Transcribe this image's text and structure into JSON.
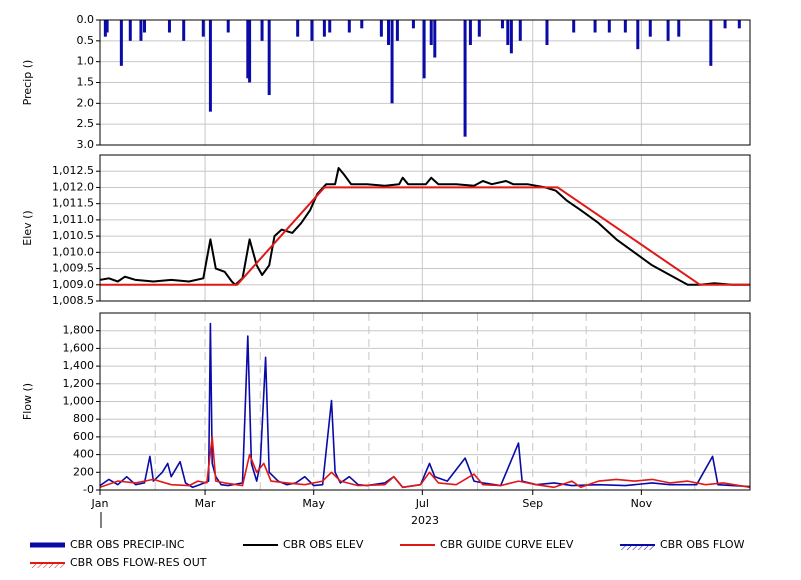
{
  "chart_data": [
    {
      "type": "bar",
      "ylabel": "Precip ()",
      "y_inverted": true,
      "grid": true,
      "xlim": [
        0,
        365
      ],
      "ylim": [
        0,
        3
      ],
      "yticks": [
        {
          "value": 0,
          "label": "0.0"
        },
        0.5,
        {
          "value": 1,
          "label": "1.0"
        },
        1.5,
        {
          "value": 2,
          "label": "2.0"
        },
        2.5,
        {
          "value": 3,
          "label": "3.0"
        }
      ],
      "series": [
        {
          "name": "CBR OBS PRECIP-INC",
          "color": "#0a0aa8",
          "x": [
            3,
            4,
            12,
            17,
            23,
            25,
            39,
            47,
            58,
            62,
            72,
            83,
            84,
            91,
            95,
            111,
            119,
            126,
            129,
            140,
            147,
            158,
            162,
            164,
            167,
            176,
            182,
            186,
            188,
            205,
            208,
            213,
            226,
            229,
            231,
            236,
            251,
            266,
            278,
            286,
            295,
            302,
            309,
            319,
            325,
            343,
            351,
            359
          ],
          "values": [
            0.4,
            0.3,
            1.1,
            0.5,
            0.5,
            0.3,
            0.3,
            0.5,
            0.4,
            2.2,
            0.3,
            1.4,
            1.5,
            0.5,
            1.8,
            0.4,
            0.5,
            0.4,
            0.3,
            0.3,
            0.2,
            0.4,
            0.6,
            2.0,
            0.5,
            0.2,
            1.4,
            0.6,
            0.9,
            2.8,
            0.6,
            0.4,
            0.2,
            0.6,
            0.8,
            0.5,
            0.6,
            0.3,
            0.3,
            0.3,
            0.3,
            0.7,
            0.4,
            0.5,
            0.4,
            1.1,
            0.2,
            0.2
          ]
        }
      ]
    },
    {
      "type": "line",
      "ylabel": "Elev ()",
      "grid": true,
      "xlim": [
        0,
        365
      ],
      "ylim": [
        1008.5,
        1013
      ],
      "yticks": [
        {
          "value": 1008.5,
          "label": "1,008.5"
        },
        {
          "value": 1009,
          "label": "1,009.0"
        },
        {
          "value": 1009.5,
          "label": "1,009.5"
        },
        {
          "value": 1010,
          "label": "1,010.0"
        },
        {
          "value": 1010.5,
          "label": "1,010.5"
        },
        {
          "value": 1011,
          "label": "1,011.0"
        },
        {
          "value": 1011.5,
          "label": "1,011.5"
        },
        {
          "value": 1012,
          "label": "1,012.0"
        },
        {
          "value": 1012.5,
          "label": "1,012.5"
        }
      ],
      "series": [
        {
          "name": "CBR OBS ELEV",
          "color": "#000000",
          "x": [
            0,
            5,
            10,
            14,
            20,
            30,
            40,
            50,
            58,
            62,
            65,
            70,
            74,
            76,
            80,
            84,
            88,
            91,
            95,
            98,
            102,
            108,
            113,
            118,
            122,
            127,
            132,
            134,
            137,
            141,
            150,
            160,
            168,
            170,
            173,
            183,
            186,
            190,
            200,
            210,
            215,
            220,
            228,
            232,
            240,
            250,
            256,
            262,
            270,
            280,
            290,
            300,
            310,
            320,
            330,
            337,
            345,
            355,
            365
          ],
          "values": [
            1009.15,
            1009.2,
            1009.1,
            1009.25,
            1009.15,
            1009.1,
            1009.15,
            1009.1,
            1009.2,
            1010.4,
            1009.5,
            1009.4,
            1009.1,
            1009.0,
            1009.2,
            1010.4,
            1009.6,
            1009.3,
            1009.6,
            1010.5,
            1010.7,
            1010.6,
            1010.9,
            1011.3,
            1011.8,
            1012.1,
            1012.1,
            1012.6,
            1012.4,
            1012.1,
            1012.1,
            1012.05,
            1012.1,
            1012.3,
            1012.1,
            1012.1,
            1012.3,
            1012.1,
            1012.1,
            1012.05,
            1012.2,
            1012.1,
            1012.2,
            1012.1,
            1012.1,
            1012.0,
            1011.9,
            1011.6,
            1011.3,
            1010.9,
            1010.4,
            1010.0,
            1009.6,
            1009.3,
            1009.0,
            1009.0,
            1009.05,
            1009.0,
            1009.0
          ]
        },
        {
          "name": "CBR GUIDE CURVE ELEV",
          "color": "#e01818",
          "x": [
            0,
            77,
            126,
            257,
            337,
            365
          ],
          "values": [
            1009,
            1009,
            1012,
            1012,
            1009,
            1009
          ]
        }
      ]
    },
    {
      "type": "line",
      "ylabel": "Flow ()",
      "grid": true,
      "grid_style": "dashed",
      "xlabel": "2023",
      "xlim": [
        0,
        365
      ],
      "xticks": [
        {
          "value": 0,
          "label": "Jan"
        },
        {
          "value": 59,
          "label": "Mar"
        },
        {
          "value": 120,
          "label": "May"
        },
        {
          "value": 181,
          "label": "Jul"
        },
        {
          "value": 243,
          "label": "Sep"
        },
        {
          "value": 304,
          "label": "Nov"
        }
      ],
      "xminorticks": [
        31,
        90,
        151,
        212,
        273,
        334
      ],
      "ylim": [
        0,
        2000
      ],
      "yticks": [
        {
          "value": 0,
          "label": "-0"
        },
        200,
        400,
        600,
        800,
        {
          "value": 1000,
          "label": "1,000"
        },
        {
          "value": 1200,
          "label": "1,200"
        },
        {
          "value": 1400,
          "label": "1,400"
        },
        {
          "value": 1600,
          "label": "1,600"
        },
        {
          "value": 1800,
          "label": "1,800"
        }
      ],
      "series": [
        {
          "name": "CBR OBS FLOW",
          "color": "#0a0aa8",
          "x": [
            0,
            5,
            10,
            15,
            20,
            25,
            28,
            30,
            35,
            38,
            40,
            45,
            48,
            52,
            56,
            61,
            62,
            63,
            65,
            68,
            72,
            80,
            83,
            85,
            88,
            90,
            93,
            95,
            100,
            105,
            110,
            115,
            120,
            125,
            130,
            132,
            135,
            140,
            145,
            150,
            160,
            165,
            170,
            180,
            185,
            188,
            195,
            205,
            210,
            215,
            225,
            235,
            237,
            245,
            255,
            265,
            280,
            295,
            310,
            320,
            335,
            344,
            347,
            355,
            365
          ],
          "values": [
            50,
            120,
            60,
            150,
            60,
            80,
            380,
            100,
            200,
            300,
            150,
            320,
            80,
            30,
            60,
            100,
            1880,
            300,
            150,
            60,
            50,
            80,
            1740,
            300,
            100,
            300,
            1500,
            200,
            100,
            60,
            80,
            150,
            50,
            60,
            1010,
            200,
            80,
            150,
            60,
            50,
            80,
            150,
            30,
            60,
            300,
            150,
            100,
            360,
            100,
            80,
            50,
            530,
            100,
            60,
            80,
            50,
            60,
            50,
            80,
            60,
            60,
            380,
            60,
            50,
            40
          ]
        },
        {
          "name": "CBR OBS FLOW-RES OUT",
          "color": "#e01818",
          "x": [
            0,
            10,
            20,
            30,
            40,
            50,
            55,
            60,
            63,
            65,
            70,
            80,
            84,
            88,
            92,
            96,
            105,
            115,
            125,
            130,
            135,
            145,
            160,
            165,
            170,
            180,
            185,
            190,
            200,
            210,
            215,
            225,
            235,
            245,
            255,
            265,
            270,
            280,
            290,
            300,
            310,
            320,
            330,
            340,
            350,
            365
          ],
          "values": [
            30,
            100,
            80,
            120,
            60,
            50,
            100,
            80,
            600,
            100,
            80,
            50,
            400,
            200,
            300,
            100,
            80,
            60,
            100,
            200,
            100,
            50,
            60,
            150,
            30,
            60,
            200,
            80,
            60,
            180,
            60,
            50,
            100,
            60,
            30,
            100,
            30,
            100,
            120,
            100,
            120,
            80,
            100,
            60,
            80,
            30
          ]
        }
      ]
    }
  ]
}
